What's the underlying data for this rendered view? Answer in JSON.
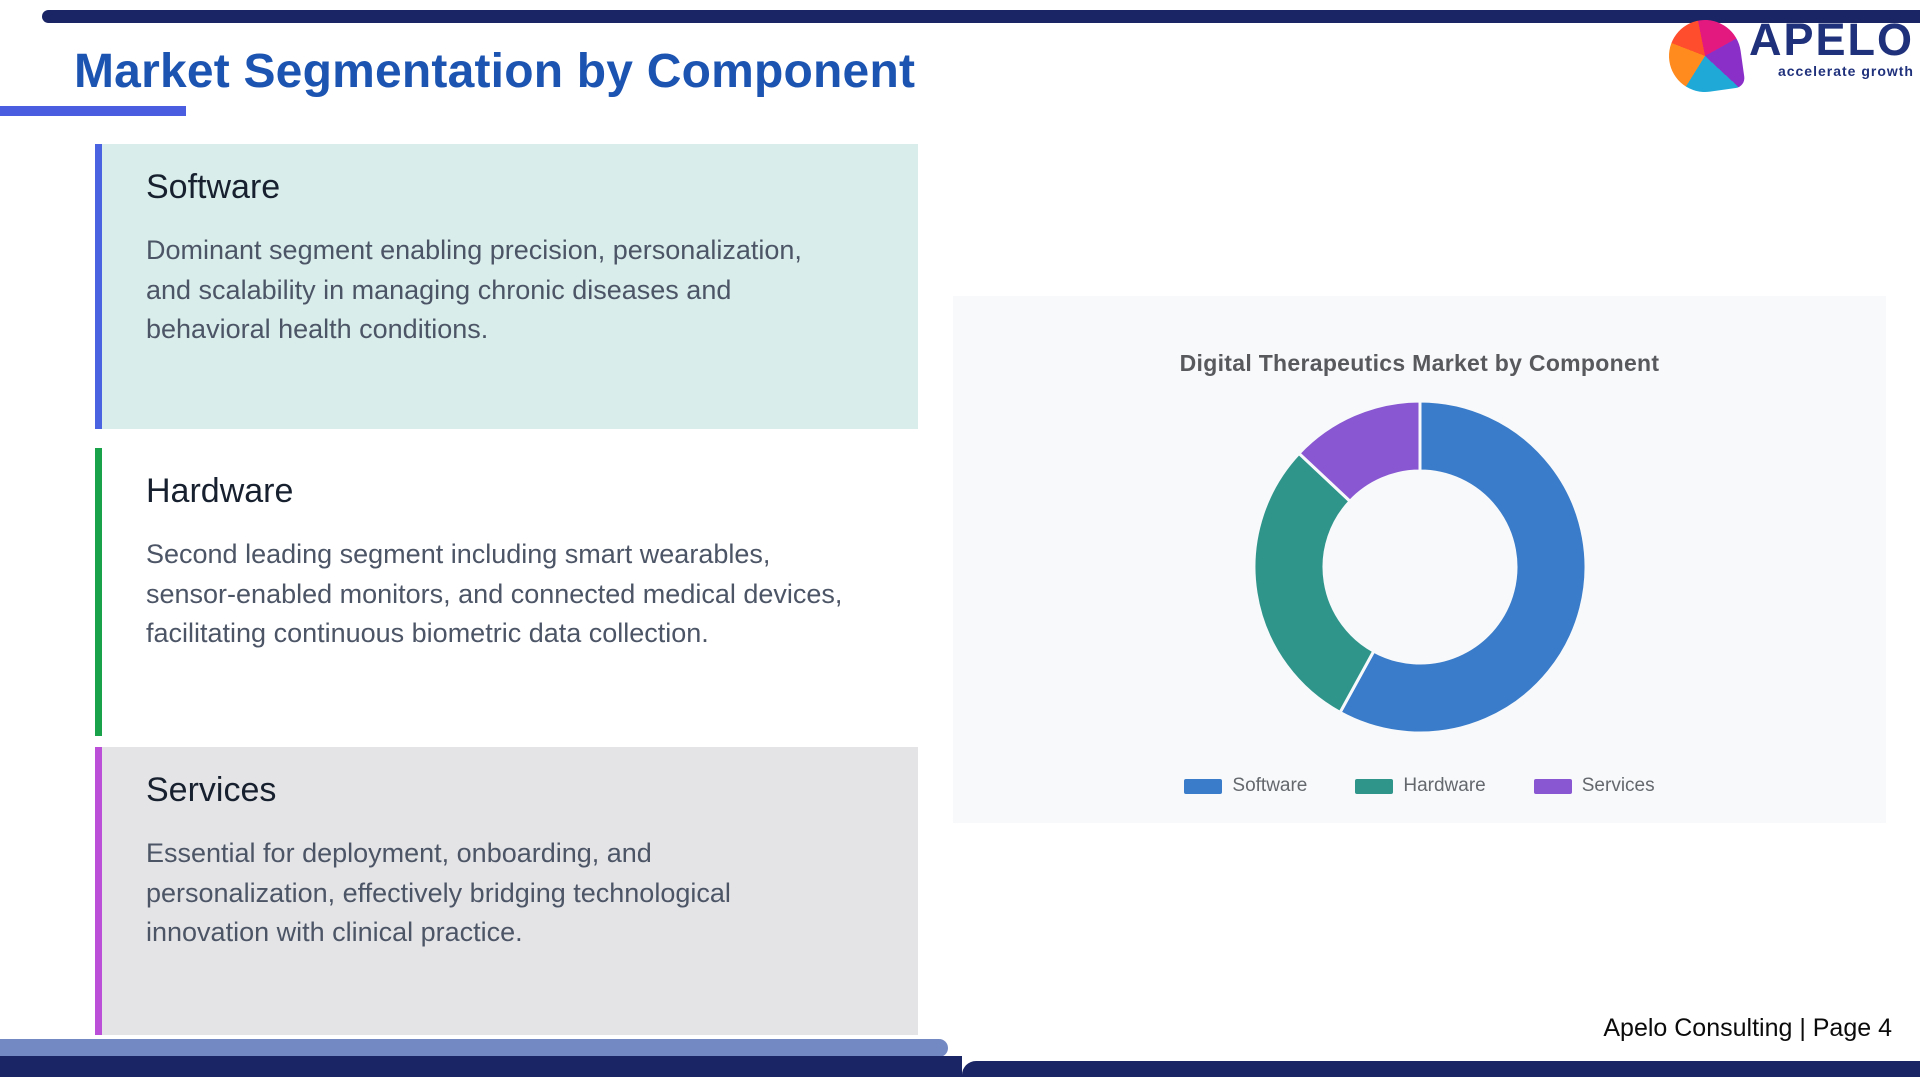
{
  "page": {
    "title": "Market Segmentation by Component",
    "footer": "Apelo Consulting | Page 4"
  },
  "logo": {
    "name": "APELO",
    "tagline": "accelerate growth"
  },
  "theme": {
    "title_color": "#1c54b2",
    "title_underline_color": "#4a5de0",
    "bar_navy": "#1a2566",
    "bar_steel_blue": "#7289c4",
    "chart_panel_bg": "#f7f9fb"
  },
  "cards": [
    {
      "title": "Software",
      "body": "Dominant segment enabling precision, personalization, and scalability in managing chronic diseases and behavioral health conditions.",
      "accent_color": "#4a63e0",
      "bg_color": "#d9edeb"
    },
    {
      "title": "Hardware",
      "body": "Second leading segment including smart wearables, sensor-enabled monitors, and connected medical devices, facilitating continuous biometric data collection.",
      "accent_color": "#19a24a",
      "bg_color": "#ffffff"
    },
    {
      "title": "Services",
      "body": "Essential for deployment, onboarding, and personalization, effectively bridging technological innovation with clinical practice.",
      "accent_color": "#bb4fd8",
      "bg_color": "#e4e4e6"
    }
  ],
  "chart_data": {
    "type": "pie",
    "donut": true,
    "title": "Digital Therapeutics Market by Component",
    "inner_radius_ratio": 0.58,
    "start_angle_deg": 0,
    "direction": "clockwise",
    "legend_position": "bottom",
    "segments": [
      {
        "label": "Software",
        "value": 58,
        "color": "#3a7cc9"
      },
      {
        "label": "Hardware",
        "value": 29,
        "color": "#2f958b"
      },
      {
        "label": "Services",
        "value": 13,
        "color": "#8957d1"
      }
    ]
  }
}
